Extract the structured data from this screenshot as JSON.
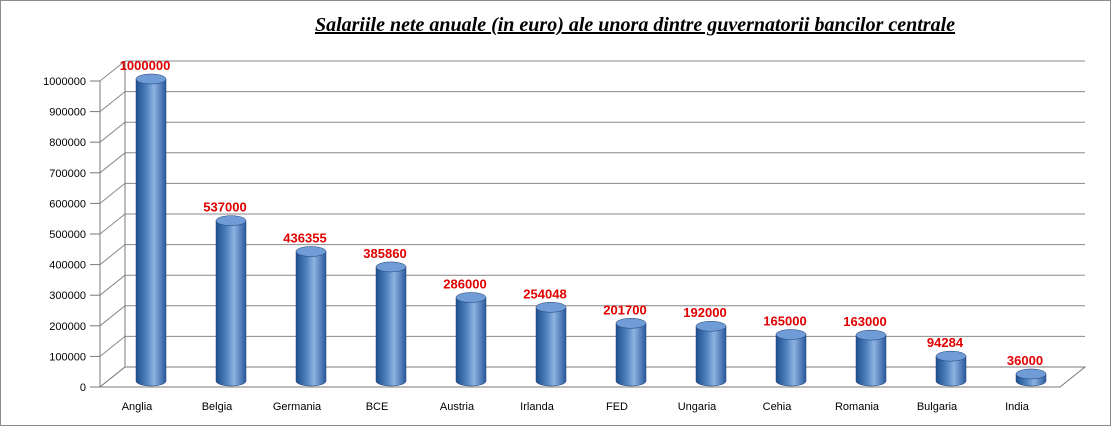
{
  "chart_data": {
    "type": "bar",
    "title": "Salariile nete anuale (in euro) ale unora dintre guvernatorii bancilor centrale",
    "xlabel": "",
    "ylabel": "",
    "ylim": [
      0,
      1000000
    ],
    "yticks": [
      0,
      100000,
      200000,
      300000,
      400000,
      500000,
      600000,
      700000,
      800000,
      900000,
      1000000
    ],
    "grid": true,
    "legend": "none",
    "categories": [
      "Anglia",
      "Belgia",
      "Germania",
      "BCE",
      "Austria",
      "Irlanda",
      "FED",
      "Ungaria",
      "Cehia",
      "Romania",
      "Bulgaria",
      "India"
    ],
    "values": [
      1000000,
      537000,
      436355,
      385860,
      286000,
      254048,
      201700,
      192000,
      165000,
      163000,
      94284,
      36000
    ],
    "data_labels": [
      "1000000",
      "537000",
      "436355",
      "385860",
      "286000",
      "254048",
      "201700",
      "192000",
      "165000",
      "163000",
      "94284",
      "36000"
    ],
    "colors": {
      "bar_dark": "#1f4f8f",
      "bar_mid": "#4f81bd",
      "bar_light": "#8db3e2",
      "bar_top": "#6f9bd6",
      "data_label": "#e00000",
      "grid": "#8a8a8a"
    }
  }
}
